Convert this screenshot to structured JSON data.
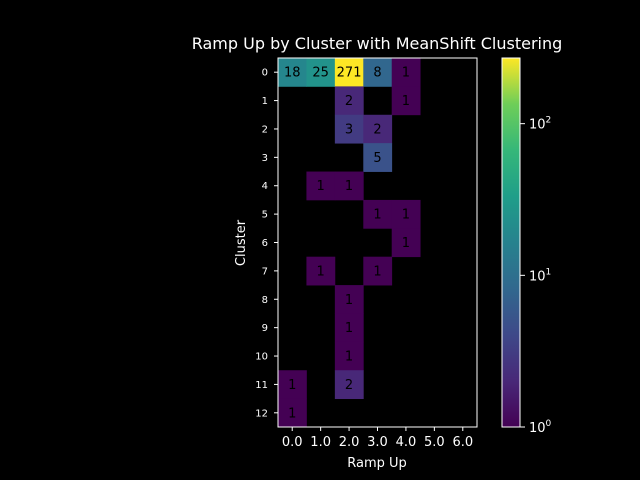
{
  "chart_data": {
    "type": "heatmap",
    "title": "Ramp Up by Cluster with MeanShift Clustering",
    "xlabel": "Ramp Up",
    "ylabel": "Cluster",
    "x_tick_labels": [
      "0.0",
      "1.0",
      "2.0",
      "3.0",
      "4.0",
      "5.0",
      "6.0"
    ],
    "y_tick_labels": [
      "0",
      "1",
      "2",
      "3",
      "4",
      "5",
      "6",
      "7",
      "8",
      "9",
      "10",
      "11",
      "12"
    ],
    "color_scale": "log",
    "colormap": "viridis",
    "color_range": [
      1,
      271
    ],
    "colorbar_ticks": [
      {
        "value": 1,
        "label_base": "10",
        "label_exp": "0"
      },
      {
        "value": 10,
        "label_base": "10",
        "label_exp": "1"
      },
      {
        "value": 100,
        "label_base": "10",
        "label_exp": "2"
      }
    ],
    "background": "#000000",
    "foreground": "#ffffff",
    "cells": [
      {
        "row": 0,
        "col": 0,
        "value": 18,
        "label": "18"
      },
      {
        "row": 0,
        "col": 1,
        "value": 25,
        "label": "25"
      },
      {
        "row": 0,
        "col": 2,
        "value": 271,
        "label": "271"
      },
      {
        "row": 0,
        "col": 3,
        "value": 8,
        "label": "8"
      },
      {
        "row": 0,
        "col": 4,
        "value": 1,
        "label": "1"
      },
      {
        "row": 1,
        "col": 2,
        "value": 2,
        "label": "2"
      },
      {
        "row": 1,
        "col": 4,
        "value": 1,
        "label": "1"
      },
      {
        "row": 2,
        "col": 2,
        "value": 3,
        "label": "3"
      },
      {
        "row": 2,
        "col": 3,
        "value": 2,
        "label": "2"
      },
      {
        "row": 3,
        "col": 3,
        "value": 5,
        "label": "5"
      },
      {
        "row": 4,
        "col": 1,
        "value": 1,
        "label": "1"
      },
      {
        "row": 4,
        "col": 2,
        "value": 1,
        "label": "1"
      },
      {
        "row": 5,
        "col": 3,
        "value": 1,
        "label": "1"
      },
      {
        "row": 5,
        "col": 4,
        "value": 1,
        "label": "1"
      },
      {
        "row": 6,
        "col": 4,
        "value": 1,
        "label": "1"
      },
      {
        "row": 7,
        "col": 1,
        "value": 1,
        "label": "1"
      },
      {
        "row": 7,
        "col": 3,
        "value": 1,
        "label": "1"
      },
      {
        "row": 8,
        "col": 2,
        "value": 1,
        "label": "1"
      },
      {
        "row": 9,
        "col": 2,
        "value": 1,
        "label": "1"
      },
      {
        "row": 10,
        "col": 2,
        "value": 1,
        "label": "1"
      },
      {
        "row": 11,
        "col": 0,
        "value": 1,
        "label": "1"
      },
      {
        "row": 11,
        "col": 2,
        "value": 2,
        "label": "2"
      },
      {
        "row": 12,
        "col": 0,
        "value": 1,
        "label": "1"
      }
    ]
  }
}
